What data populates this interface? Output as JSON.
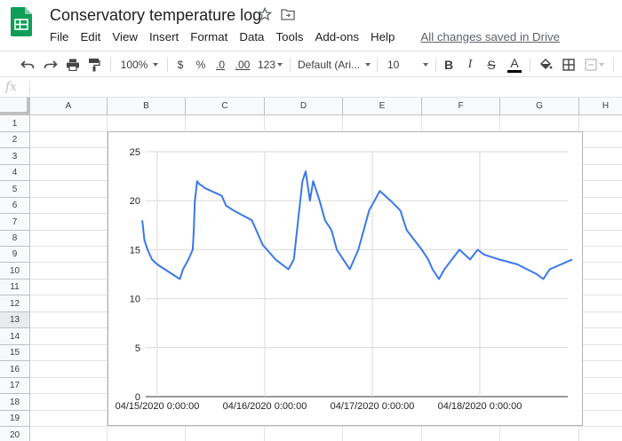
{
  "app": {
    "title": "Conservatory temperature log",
    "menu": [
      "File",
      "Edit",
      "View",
      "Insert",
      "Format",
      "Data",
      "Tools",
      "Add-ons",
      "Help"
    ],
    "save_status": "All changes saved in Drive",
    "icons": {
      "logo": "sheets-logo-icon",
      "star": "star-icon",
      "move": "move-to-folder-icon"
    }
  },
  "toolbar": {
    "zoom": "100%",
    "currency": "$",
    "percent": "%",
    "decrease_decimals": ".0",
    "increase_decimals": ".00",
    "more_formats": "123",
    "font": "Default (Ari...",
    "font_size": "10",
    "bold": "B",
    "italic": "I",
    "strikethrough": "S",
    "text_color": "A"
  },
  "formula_bar": {
    "label": "fx",
    "value": ""
  },
  "sheet": {
    "columns": [
      "A",
      "B",
      "C",
      "D",
      "E",
      "F",
      "G",
      "H"
    ],
    "rows": [
      "1",
      "2",
      "3",
      "4",
      "5",
      "6",
      "7",
      "8",
      "9",
      "10",
      "11",
      "12",
      "13",
      "14",
      "15",
      "16",
      "17",
      "18",
      "19",
      "20"
    ],
    "selected_row": "13"
  },
  "chart_data": {
    "type": "line",
    "title": "",
    "xlabel": "",
    "ylabel": "",
    "ylim": [
      0,
      25
    ],
    "yticks": [
      "0",
      "5",
      "10",
      "15",
      "20",
      "25"
    ],
    "xticks": [
      "04/15/2020 0:00:00",
      "04/16/2020 0:00:00",
      "04/17/2020 0:00:00",
      "04/18/2020 0:00:00"
    ],
    "grid": true,
    "legend": "none",
    "color": "#3b78e7",
    "series": [
      {
        "x": [
          -0.14,
          -0.12,
          -0.09,
          -0.05,
          0.0,
          0.07,
          0.21,
          0.24,
          0.29,
          0.33,
          0.34,
          0.35,
          0.36,
          0.37,
          0.39,
          0.42,
          0.44,
          0.6,
          0.64,
          0.71,
          0.88,
          0.98,
          1.1,
          1.22,
          1.27,
          1.29,
          1.31,
          1.33,
          1.35,
          1.38,
          1.42,
          1.45,
          1.48,
          1.51,
          1.56,
          1.62,
          1.67,
          1.73,
          1.79,
          1.87,
          1.97,
          2.07,
          2.17,
          2.26,
          2.32,
          2.39,
          2.46,
          2.52,
          2.56,
          2.62,
          2.67,
          2.81,
          2.91,
          2.98,
          3.04,
          3.18,
          3.35,
          3.44,
          3.53,
          3.59,
          3.65,
          3.86
        ],
        "y": [
          18.0,
          16.0,
          15.0,
          14.0,
          13.5,
          13.0,
          12.0,
          13.0,
          14.0,
          15.0,
          17.0,
          20.0,
          21.0,
          22.0,
          21.7,
          21.5,
          21.3,
          20.5,
          19.5,
          19.0,
          18.0,
          15.5,
          14.0,
          13.0,
          14.0,
          16.0,
          18.0,
          20.0,
          22.0,
          23.0,
          20.0,
          22.0,
          21.0,
          20.0,
          18.0,
          17.0,
          15.0,
          14.0,
          13.0,
          15.0,
          19.0,
          21.0,
          20.0,
          19.0,
          17.0,
          16.0,
          15.0,
          14.0,
          13.0,
          12.0,
          13.0,
          15.0,
          14.0,
          15.0,
          14.5,
          14.0,
          13.5,
          13.0,
          12.5,
          12.0,
          13.0,
          14.0
        ]
      }
    ]
  }
}
